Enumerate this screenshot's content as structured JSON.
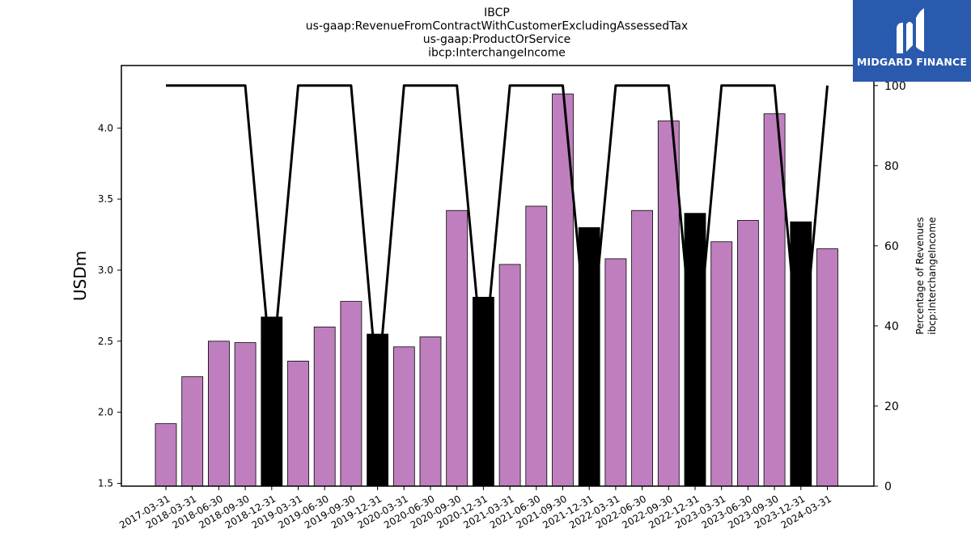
{
  "title_lines": [
    "IBCP",
    "us-gaap:RevenueFromContractWithCustomerExcludingAssessedTax",
    "us-gaap:ProductOrService",
    "ibcp:InterchangeIncome"
  ],
  "logo": {
    "text": "MIDGARD FINANCE",
    "background": "#2a5aad"
  },
  "chart_data": {
    "type": "bar",
    "categories": [
      "2017-03-31",
      "2018-03-31",
      "2018-06-30",
      "2018-09-30",
      "2018-12-31",
      "2019-03-31",
      "2019-06-30",
      "2019-09-30",
      "2019-12-31",
      "2020-03-31",
      "2020-06-30",
      "2020-09-30",
      "2020-12-31",
      "2021-03-31",
      "2021-06-30",
      "2021-09-30",
      "2021-12-31",
      "2022-03-31",
      "2022-06-30",
      "2022-09-30",
      "2022-12-31",
      "2023-03-31",
      "2023-06-30",
      "2023-09-30",
      "2023-12-31",
      "2024-03-31"
    ],
    "series": [
      {
        "values": [
          1.92,
          2.25,
          2.5,
          2.49,
          2.67,
          2.36,
          2.6,
          2.78,
          2.55,
          2.46,
          2.53,
          3.42,
          2.81,
          3.04,
          3.45,
          4.24,
          3.3,
          3.08,
          3.42,
          4.05,
          3.4,
          3.2,
          3.35,
          4.1,
          3.34,
          3.15
        ],
        "axis": "left"
      },
      {
        "values": [
          100,
          100,
          100,
          100,
          27,
          100,
          100,
          100,
          24,
          100,
          100,
          100,
          29,
          100,
          100,
          100,
          30,
          100,
          100,
          100,
          28,
          100,
          100,
          100,
          27,
          100
        ],
        "axis": "right",
        "type": "line"
      }
    ],
    "bar_highlight": [
      false,
      false,
      false,
      false,
      true,
      false,
      false,
      false,
      true,
      false,
      false,
      false,
      true,
      false,
      false,
      false,
      true,
      false,
      false,
      false,
      true,
      false,
      false,
      false,
      true,
      false
    ],
    "ylabel": "USDm",
    "y2label": [
      "Percentage of Revenues",
      "ibcp:InterchangeIncome"
    ],
    "ylim": [
      1.48,
      4.44
    ],
    "y2lim": [
      0,
      105
    ],
    "yticks": [
      "1.5",
      "2.0",
      "2.5",
      "3.0",
      "3.5",
      "4.0"
    ],
    "y2ticks": [
      "0",
      "20",
      "40",
      "60",
      "80",
      "100"
    ],
    "colors": {
      "bar": "#bf7fbf",
      "bar_highlight": "#000000",
      "line": "#000000"
    },
    "grid": false
  }
}
